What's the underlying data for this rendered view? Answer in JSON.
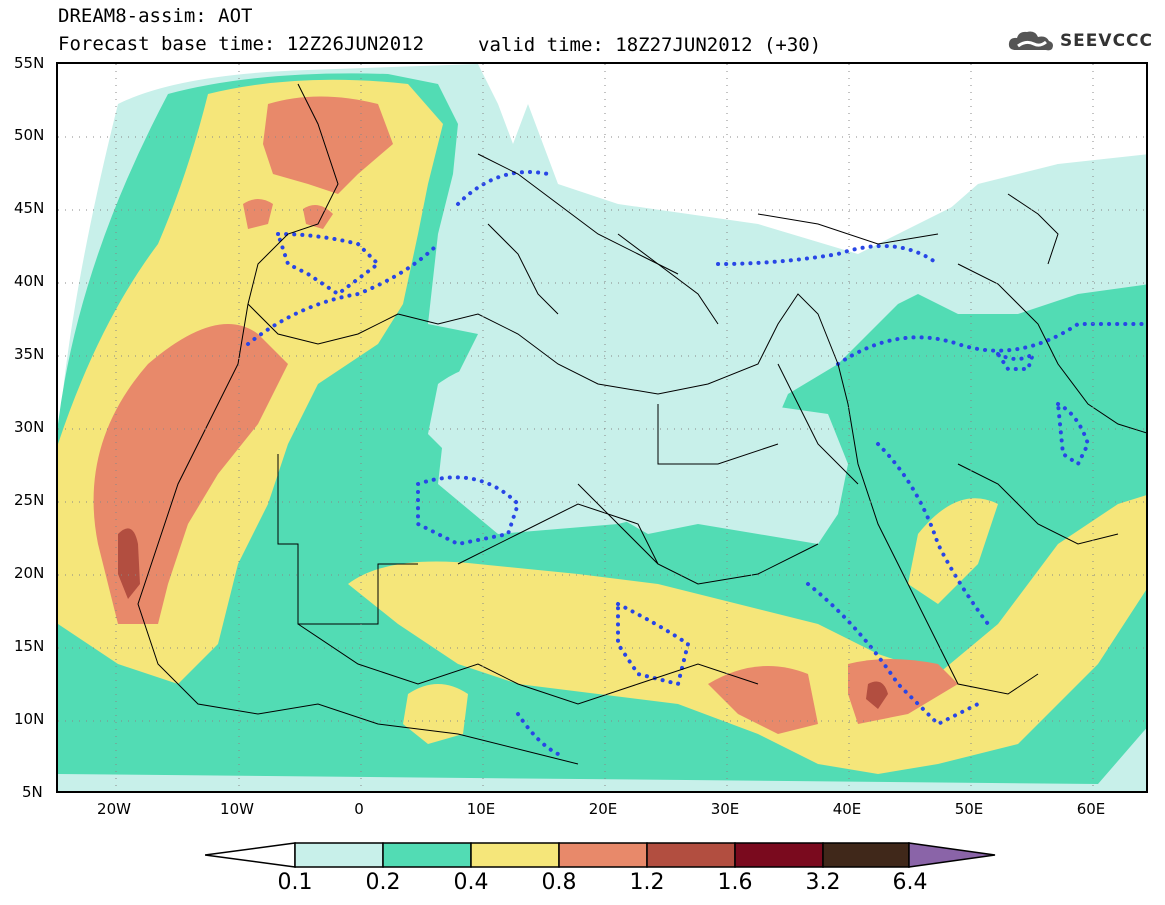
{
  "header": {
    "title_line1": "DREAM8-assim: AOT",
    "title_line2": "Forecast base time: 12Z26JUN2012",
    "valid_time": "valid time: 18Z27JUN2012 (+30)",
    "logo_text": "SEEVCCC",
    "logo_icon": "cloud-icon"
  },
  "map": {
    "lat_labels": [
      "55N",
      "50N",
      "45N",
      "40N",
      "35N",
      "30N",
      "25N",
      "20N",
      "15N",
      "10N",
      "5N"
    ],
    "lon_labels": [
      "20W",
      "10W",
      "0",
      "10E",
      "20E",
      "30E",
      "40E",
      "50E",
      "60E"
    ],
    "colors": {
      "ocean_land_background": "#ffffff",
      "level_0_1": "#c8f0ea",
      "level_0_2": "#52dcb4",
      "level_0_4": "#f5e67a",
      "level_0_8": "#e8896a",
      "level_1_2": "#b24e40",
      "dust_contour": "#2846e6",
      "borders": "#000000"
    }
  },
  "legend": {
    "labels": [
      "0.1",
      "0.2",
      "0.4",
      "0.8",
      "1.2",
      "1.6",
      "3.2",
      "6.4"
    ],
    "colors": [
      "#ffffff",
      "#c8f0ea",
      "#52dcb4",
      "#f5e67a",
      "#e8896a",
      "#b24e40",
      "#7a0a1e",
      "#40281a",
      "#8a64a8"
    ]
  }
}
